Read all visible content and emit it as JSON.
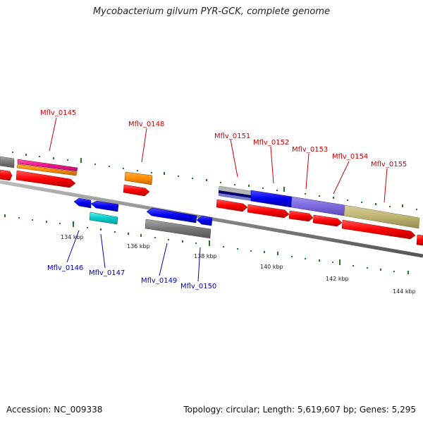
{
  "title": "Mycobacterium gilvum PYR-GCK, complete genome",
  "footer": {
    "accession": "Accession: NC_009338",
    "summary": "Topology: circular; Length: 5,619,607 bp; Genes: 5,295"
  },
  "colors": {
    "forward_label": "#cc0000",
    "reverse_label": "#0000bb",
    "cds_red": "#ff0000",
    "tick_green": "#227722",
    "backbone": "#888888"
  },
  "scale_labels": [
    "134 kbp",
    "136 kbp",
    "138 kbp",
    "140 kbp",
    "142 kbp",
    "144 kbp"
  ],
  "gene_labels": [
    {
      "id": "g0145",
      "text": "Mflv_0145",
      "strand": "forward"
    },
    {
      "id": "g0148",
      "text": "Mflv_0148",
      "strand": "forward"
    },
    {
      "id": "g0151",
      "text": "Mflv_0151",
      "strand": "forward"
    },
    {
      "id": "g0152",
      "text": "Mflv_0152",
      "strand": "forward"
    },
    {
      "id": "g0153",
      "text": "Mflv_0153",
      "strand": "forward"
    },
    {
      "id": "g0154",
      "text": "Mflv_0154",
      "strand": "forward"
    },
    {
      "id": "g0155",
      "text": "Mflv_0155",
      "strand": "forward"
    },
    {
      "id": "g0146",
      "text": "Mflv_0146",
      "strand": "reverse"
    },
    {
      "id": "g0147",
      "text": "Mflv_0147",
      "strand": "reverse"
    },
    {
      "id": "g0149",
      "text": "Mflv_0149",
      "strand": "reverse"
    },
    {
      "id": "g0150",
      "text": "Mflv_0150",
      "strand": "reverse"
    }
  ]
}
